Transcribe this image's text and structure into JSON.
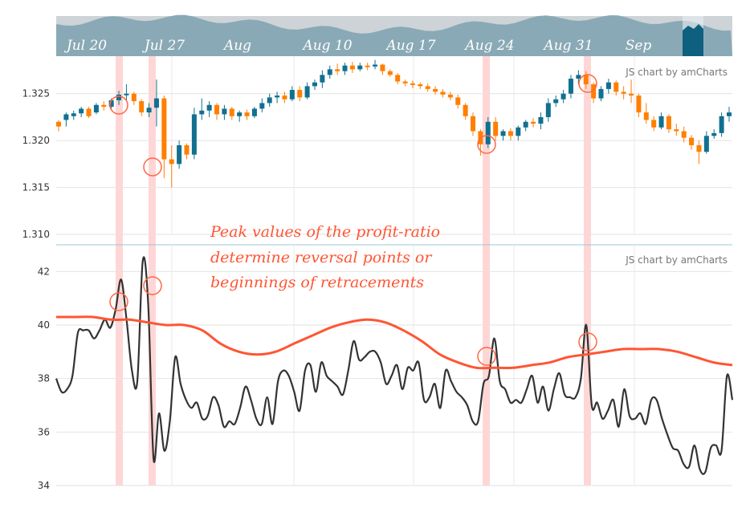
{
  "chart_data": [
    {
      "type": "candlestick",
      "panel": "price",
      "credit": "JS chart by amCharts",
      "y_ticks": [
        "1.325",
        "1.320",
        "1.315",
        "1.310"
      ],
      "ylim": [
        1.31,
        1.329
      ],
      "colors": {
        "up": "#11708f",
        "down": "#ff7f00"
      },
      "candles": [
        [
          1.322,
          1.3222,
          1.3215,
          1.321
        ],
        [
          1.3222,
          1.323,
          1.3228,
          1.3215
        ],
        [
          1.3226,
          1.3232,
          1.3229,
          1.3222
        ],
        [
          1.3229,
          1.3236,
          1.3234,
          1.3225
        ],
        [
          1.3234,
          1.3236,
          1.3226,
          1.3224
        ],
        [
          1.323,
          1.324,
          1.3238,
          1.3228
        ],
        [
          1.3238,
          1.3242,
          1.3236,
          1.3232
        ],
        [
          1.3236,
          1.3245,
          1.3243,
          1.3234
        ],
        [
          1.3243,
          1.3253,
          1.3249,
          1.3238
        ],
        [
          1.3249,
          1.326,
          1.325,
          1.3242
        ],
        [
          1.325,
          1.3252,
          1.3242,
          1.3238
        ],
        [
          1.3242,
          1.3244,
          1.323,
          1.3226
        ],
        [
          1.323,
          1.324,
          1.3235,
          1.3225
        ],
        [
          1.3235,
          1.3265,
          1.3245,
          1.3215
        ],
        [
          1.3245,
          1.3248,
          1.318,
          1.316
        ],
        [
          1.318,
          1.3195,
          1.3175,
          1.315
        ],
        [
          1.3175,
          1.32,
          1.3195,
          1.317
        ],
        [
          1.3195,
          1.3197,
          1.3185,
          1.318
        ],
        [
          1.3185,
          1.3235,
          1.3228,
          1.318
        ],
        [
          1.3228,
          1.3245,
          1.3232,
          1.3222
        ],
        [
          1.3232,
          1.3242,
          1.3238,
          1.3225
        ],
        [
          1.3238,
          1.324,
          1.3228,
          1.3222
        ],
        [
          1.3228,
          1.3238,
          1.3234,
          1.3222
        ],
        [
          1.3234,
          1.3236,
          1.3226,
          1.3222
        ],
        [
          1.3226,
          1.3232,
          1.323,
          1.322
        ],
        [
          1.323,
          1.3233,
          1.3226,
          1.3222
        ],
        [
          1.3226,
          1.3236,
          1.3234,
          1.3224
        ],
        [
          1.3234,
          1.3245,
          1.324,
          1.323
        ],
        [
          1.324,
          1.325,
          1.3246,
          1.3236
        ],
        [
          1.3246,
          1.3252,
          1.3248,
          1.324
        ],
        [
          1.3248,
          1.3252,
          1.3244,
          1.324
        ],
        [
          1.3244,
          1.3258,
          1.3254,
          1.3242
        ],
        [
          1.3254,
          1.3258,
          1.3246,
          1.3242
        ],
        [
          1.3246,
          1.3262,
          1.3258,
          1.3244
        ],
        [
          1.3258,
          1.3265,
          1.3262,
          1.3254
        ],
        [
          1.3262,
          1.3275,
          1.327,
          1.3256
        ],
        [
          1.327,
          1.328,
          1.3276,
          1.3266
        ],
        [
          1.3276,
          1.3282,
          1.3274,
          1.327
        ],
        [
          1.3274,
          1.3283,
          1.328,
          1.327
        ],
        [
          1.328,
          1.3284,
          1.3276,
          1.3272
        ],
        [
          1.3276,
          1.3283,
          1.328,
          1.3274
        ],
        [
          1.328,
          1.3283,
          1.3279,
          1.3275
        ],
        [
          1.3279,
          1.3286,
          1.3281,
          1.3276
        ],
        [
          1.3281,
          1.3282,
          1.3274,
          1.327
        ],
        [
          1.3274,
          1.3276,
          1.327,
          1.3268
        ],
        [
          1.327,
          1.3272,
          1.3263,
          1.326
        ],
        [
          1.3263,
          1.3265,
          1.3261,
          1.3258
        ],
        [
          1.3261,
          1.3264,
          1.326,
          1.3256
        ],
        [
          1.326,
          1.3262,
          1.3258,
          1.3255
        ],
        [
          1.3258,
          1.3261,
          1.3255,
          1.3252
        ],
        [
          1.3255,
          1.3258,
          1.3252,
          1.3249
        ],
        [
          1.3252,
          1.3255,
          1.3249,
          1.3246
        ],
        [
          1.3249,
          1.3252,
          1.3246,
          1.3243
        ],
        [
          1.3246,
          1.3249,
          1.3238,
          1.3234
        ],
        [
          1.3238,
          1.324,
          1.3226,
          1.3222
        ],
        [
          1.3226,
          1.323,
          1.321,
          1.3205
        ],
        [
          1.321,
          1.3212,
          1.3196,
          1.3184
        ],
        [
          1.3196,
          1.3225,
          1.322,
          1.3192
        ],
        [
          1.322,
          1.3225,
          1.3205,
          1.32
        ],
        [
          1.3205,
          1.3212,
          1.321,
          1.32
        ],
        [
          1.321,
          1.3213,
          1.3205,
          1.32
        ],
        [
          1.3205,
          1.3216,
          1.3214,
          1.32
        ],
        [
          1.3214,
          1.3222,
          1.322,
          1.321
        ],
        [
          1.322,
          1.3224,
          1.3218,
          1.3214
        ],
        [
          1.3218,
          1.323,
          1.3225,
          1.3212
        ],
        [
          1.3225,
          1.3245,
          1.324,
          1.322
        ],
        [
          1.324,
          1.3248,
          1.3244,
          1.3236
        ],
        [
          1.3244,
          1.3254,
          1.325,
          1.324
        ],
        [
          1.325,
          1.327,
          1.3266,
          1.3245
        ],
        [
          1.3266,
          1.3275,
          1.327,
          1.326
        ],
        [
          1.327,
          1.3274,
          1.326,
          1.3255
        ],
        [
          1.326,
          1.3262,
          1.3245,
          1.324
        ],
        [
          1.3245,
          1.3258,
          1.3255,
          1.3242
        ],
        [
          1.3255,
          1.3266,
          1.3262,
          1.325
        ],
        [
          1.3262,
          1.3264,
          1.3252,
          1.3248
        ],
        [
          1.3252,
          1.3258,
          1.325,
          1.3244
        ],
        [
          1.325,
          1.3265,
          1.3248,
          1.324
        ],
        [
          1.3248,
          1.325,
          1.323,
          1.3225
        ],
        [
          1.323,
          1.324,
          1.3222,
          1.3218
        ],
        [
          1.3222,
          1.3226,
          1.3214,
          1.321
        ],
        [
          1.3214,
          1.323,
          1.3226,
          1.3212
        ],
        [
          1.3226,
          1.3228,
          1.3212,
          1.3208
        ],
        [
          1.3212,
          1.3218,
          1.321,
          1.3205
        ],
        [
          1.321,
          1.3215,
          1.3203,
          1.3198
        ],
        [
          1.3203,
          1.3206,
          1.3195,
          1.319
        ],
        [
          1.3195,
          1.32,
          1.3188,
          1.3175
        ],
        [
          1.3188,
          1.321,
          1.3205,
          1.3186
        ],
        [
          1.3205,
          1.3212,
          1.3208,
          1.3202
        ],
        [
          1.3208,
          1.323,
          1.3226,
          1.3204
        ],
        [
          1.3226,
          1.3236,
          1.323,
          1.322
        ]
      ]
    },
    {
      "type": "line",
      "panel": "profit-ratio",
      "credit": "JS chart by amCharts",
      "y_ticks": [
        "42",
        "40",
        "38",
        "36",
        "34"
      ],
      "ylim": [
        34,
        43
      ],
      "series": [
        {
          "color": "#333333",
          "values": [
            38,
            37.5,
            37.6,
            38.1,
            39.7,
            39.8,
            39.8,
            39.5,
            39.8,
            40.2,
            39.9,
            40.6,
            41.7,
            40.2,
            38.3,
            37.9,
            42.4,
            40.8,
            35,
            36.7,
            35.3,
            36.4,
            38.8,
            37.8,
            37.2,
            36.9,
            37.1,
            36.5,
            36.6,
            37.3,
            37,
            36.2,
            36.4,
            36.3,
            36.9,
            37.7,
            37.2,
            36.5,
            36.3,
            37.3,
            36.3,
            37.9,
            38.3,
            38.1,
            37.5,
            36.8,
            38.3,
            38.5,
            37.5,
            38.6,
            38.1,
            37.9,
            37.7,
            37.4,
            38.3,
            39.4,
            38.7,
            38.8,
            39,
            39,
            38.6,
            37.8,
            38.1,
            38.5,
            37.6,
            38.4,
            38.3,
            38.6,
            37.2,
            37.3,
            37.8,
            36.9,
            38.3,
            37.9,
            37.5,
            37.3,
            37,
            36.4,
            36.4,
            37.8,
            38.1,
            39.5,
            37.9,
            37.6,
            37.1,
            37.2,
            37.1,
            37.6,
            38.1,
            37.1,
            37.7,
            36.8,
            37.6,
            38.2,
            37.4,
            37.3,
            37.3,
            38,
            40,
            37,
            37.1,
            36.5,
            36.8,
            37.2,
            36.2,
            37.6,
            36.6,
            36.5,
            36.7,
            36.3,
            37.2,
            37.2,
            36.5,
            35.9,
            35.4,
            35.3,
            34.8,
            34.7,
            35.5,
            34.6,
            34.5,
            35.4,
            35.5,
            35.3,
            38.1,
            37.2
          ]
        },
        {
          "color": "#ff5533",
          "values": [
            40.3,
            40.3,
            40.3,
            40.2,
            40.2,
            40.1,
            40,
            40,
            39.8,
            39.3,
            39,
            38.9,
            39,
            39.3,
            39.6,
            39.9,
            40.1,
            40.2,
            40.1,
            39.8,
            39.4,
            38.9,
            38.6,
            38.4,
            38.4,
            38.4,
            38.5,
            38.6,
            38.8,
            38.9,
            39,
            39.1,
            39.1,
            39.1,
            39,
            38.8,
            38.6,
            38.5
          ]
        }
      ]
    }
  ],
  "navigator": {
    "labels": [
      "Jul 20",
      "Jul 27",
      "Aug",
      "Aug 10",
      "Aug 17",
      "Aug 24",
      "Aug 31",
      "Sep"
    ]
  },
  "annotation": {
    "lines": [
      "Peak values of the profit-ratio",
      "determine reversal points or",
      "beginnings of retracements"
    ]
  }
}
